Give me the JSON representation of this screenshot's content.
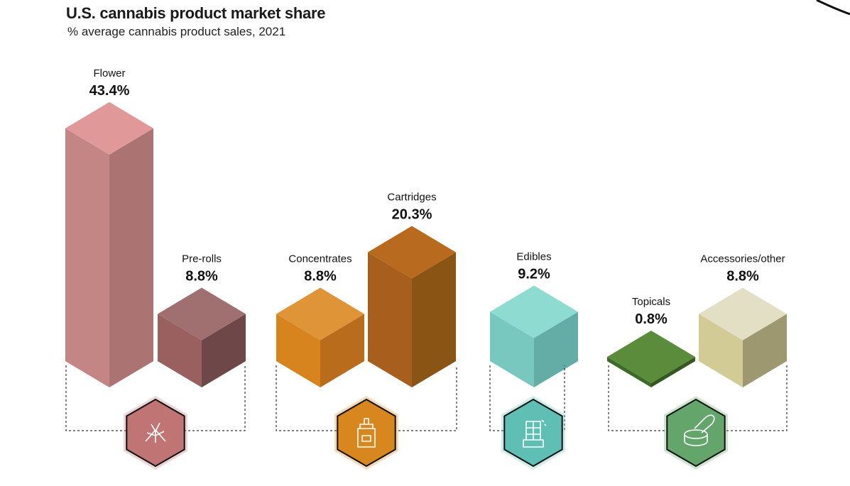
{
  "chart_data": {
    "type": "bar",
    "title": "U.S. cannabis product market share",
    "subtitle": "% average cannabis product sales, 2021",
    "categories": [
      "Flower",
      "Pre-rolls",
      "Concentrates",
      "Cartridges",
      "Edibles",
      "Topicals",
      "Accessories/other"
    ],
    "values": [
      43.4,
      8.8,
      8.8,
      20.3,
      9.2,
      0.8,
      8.8
    ],
    "value_labels": [
      "43.4%",
      "8.8%",
      "8.8%",
      "20.3%",
      "9.2%",
      "0.8%",
      "8.8%"
    ],
    "unit": "%",
    "groups": [
      {
        "icon": "cannabis-leaf-icon",
        "members": [
          "Flower",
          "Pre-rolls"
        ],
        "color": "#c07474"
      },
      {
        "icon": "dropper-bottle-icon",
        "members": [
          "Concentrates",
          "Cartridges"
        ],
        "color": "#d8871e"
      },
      {
        "icon": "chocolate-bar-icon",
        "members": [
          "Edibles"
        ],
        "color": "#5fbfb5"
      },
      {
        "icon": "cream-jar-icon",
        "members": [
          "Topicals",
          "Accessories/other"
        ],
        "color": "#63a56a"
      }
    ],
    "colors": [
      {
        "top": "#e09898",
        "left": "#c48585",
        "right": "#ac7373"
      },
      {
        "top": "#a07070",
        "left": "#9a6060",
        "right": "#6e4848"
      },
      {
        "top": "#e09438",
        "left": "#d8841e",
        "right": "#b86c1c"
      },
      {
        "top": "#b86a1e",
        "left": "#a85e1c",
        "right": "#8a5414"
      },
      {
        "top": "#8edbd2",
        "left": "#78c8c0",
        "right": "#64aca6"
      },
      {
        "top": "#5a8c3c",
        "left": "#3e6a28",
        "right": "#34581f"
      },
      {
        "top": "#e2dfc4",
        "left": "#d2cb96",
        "right": "#9e9870"
      }
    ]
  }
}
